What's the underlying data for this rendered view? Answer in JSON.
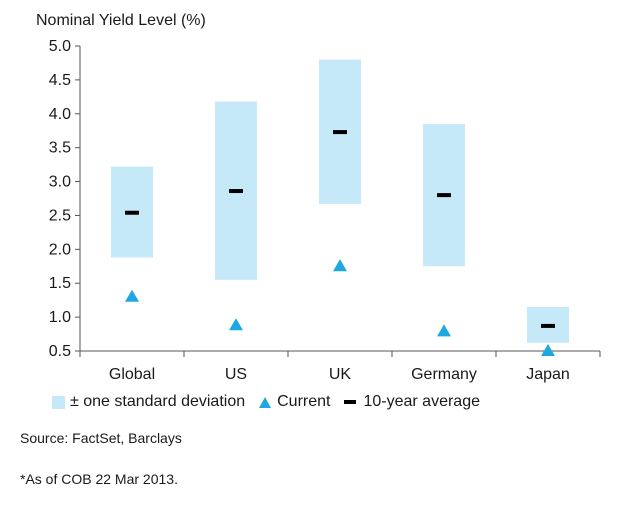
{
  "chart_data": {
    "type": "range-bar",
    "ylabel": "Nominal Yield Level (%)",
    "ylim": [
      0.5,
      5.0
    ],
    "yticks": [
      "5.0",
      "4.5",
      "4.0",
      "3.5",
      "3.0",
      "2.5",
      "2.0",
      "1.5",
      "1.0",
      "0.5"
    ],
    "categories": [
      "Global",
      "US",
      "UK",
      "Germany",
      "Japan"
    ],
    "series": [
      {
        "name": "± one standard deviation",
        "kind": "range",
        "low": [
          1.88,
          1.55,
          2.67,
          1.75,
          0.62
        ],
        "high": [
          3.22,
          4.18,
          4.8,
          3.85,
          1.15
        ],
        "color": "#c6e9f9"
      },
      {
        "name": "Current",
        "kind": "marker",
        "values": [
          1.3,
          0.88,
          1.75,
          0.79,
          0.5
        ],
        "color": "#1ea8e0"
      },
      {
        "name": "10-year average",
        "kind": "dash",
        "values": [
          2.54,
          2.86,
          3.73,
          2.8,
          0.87
        ],
        "color": "#000000"
      }
    ],
    "legend_position": "bottom",
    "grid": false
  },
  "legend": {
    "range_label": "± one standard deviation",
    "current_label": "Current",
    "average_label": "10-year average"
  },
  "notes": {
    "source": "Source: FactSet, Barclays",
    "asof": "*As of COB 22 Mar 2013."
  }
}
